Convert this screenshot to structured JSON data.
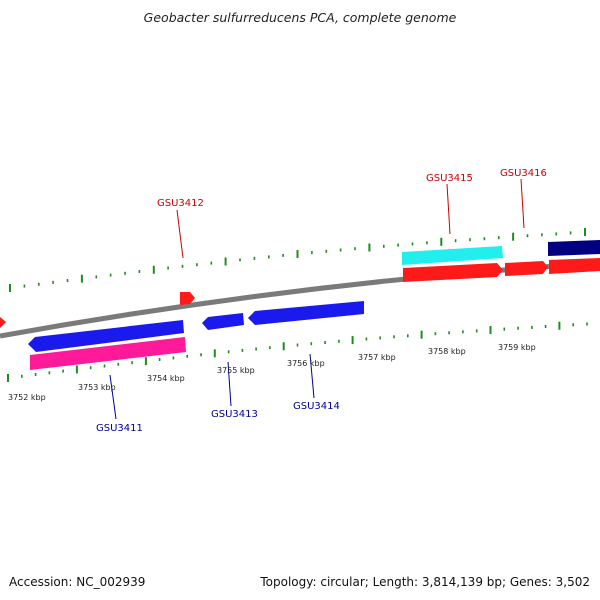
{
  "title": "Geobacter sulfurreducens PCA, complete genome",
  "footer": {
    "accession": "Accession: NC_002939",
    "topology": "Topology: circular; Length: 3,814,139 bp; Genes: 3,502"
  },
  "colors": {
    "backbone": "#7a7a7a",
    "tick": "#1e8c1e",
    "forward_label": "#cc0000",
    "reverse_label": "#000099",
    "red": "#ff1a1a",
    "blue": "#1a1aee",
    "pink": "#ff1a99",
    "cyan": "#22eeee",
    "navy": "#000080"
  },
  "scale_labels": [
    "3752 kbp",
    "3753 kbp",
    "3754 kbp",
    "3755 kbp",
    "3756 kbp",
    "3757 kbp",
    "3758 kbp",
    "3759 kbp"
  ],
  "gene_labels": [
    {
      "text": "GSU3412",
      "strand": "forward"
    },
    {
      "text": "GSU3415",
      "strand": "forward"
    },
    {
      "text": "GSU3416",
      "strand": "forward"
    },
    {
      "text": "GSU3411",
      "strand": "reverse"
    },
    {
      "text": "GSU3413",
      "strand": "reverse"
    },
    {
      "text": "GSU3414",
      "strand": "reverse"
    }
  ]
}
